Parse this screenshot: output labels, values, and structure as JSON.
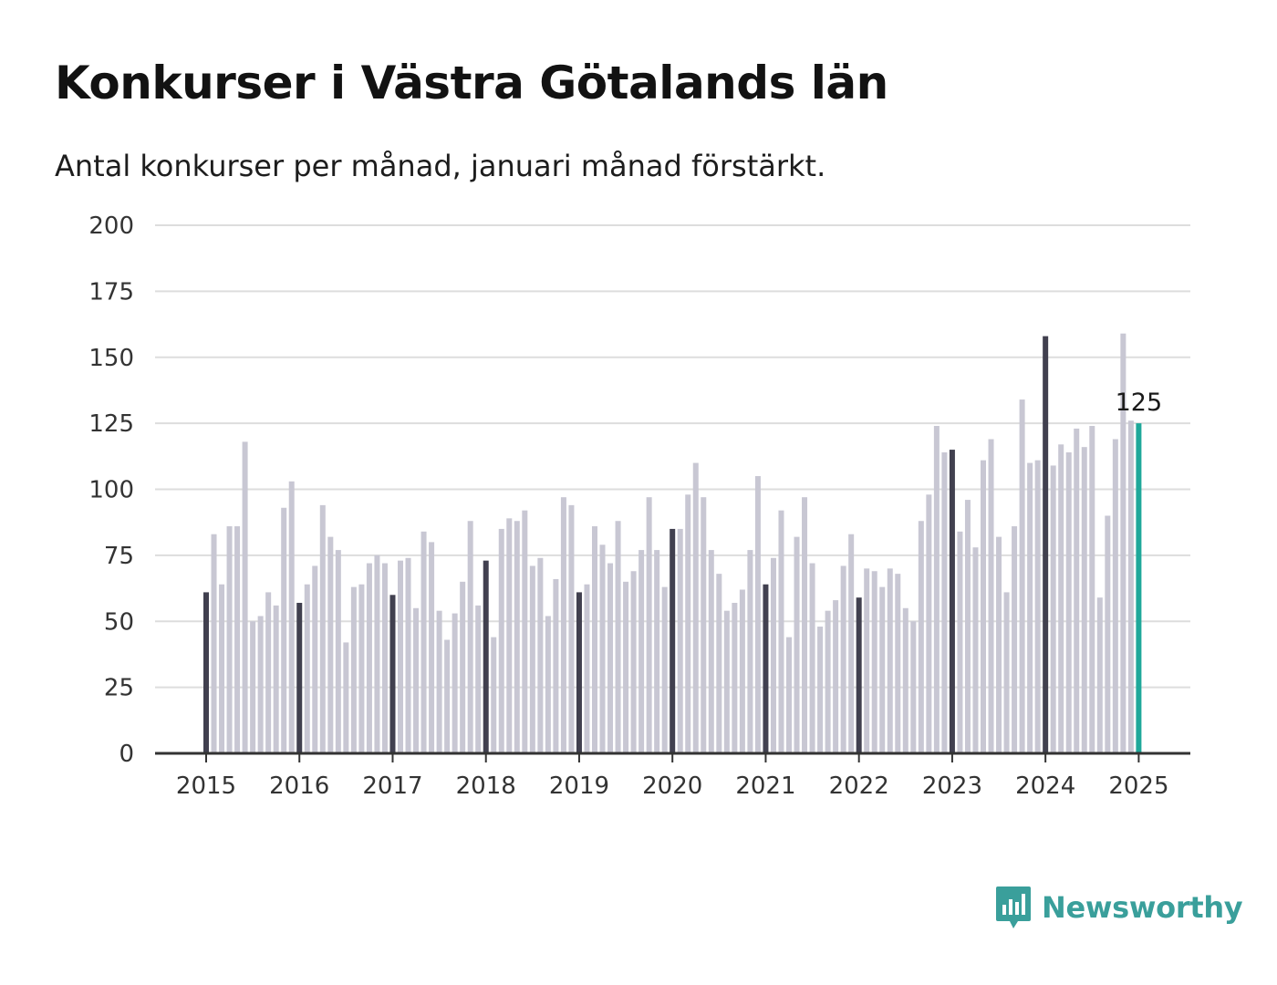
{
  "header": {
    "title": "Konkurser i Västra Götalands län",
    "subtitle": "Antal konkurser per månad, januari månad förstärkt."
  },
  "logo": {
    "text": "Newsworthy",
    "icon": "newsworthy-chart-icon"
  },
  "colors": {
    "bar": "#c8c7d3",
    "january": "#41404f",
    "latest": "#1fa89a",
    "grid": "#dddddd",
    "axis": "#333333",
    "brand": "#3a9f9b"
  },
  "chart_data": {
    "type": "bar",
    "title": "Konkurser i Västra Götalands län",
    "subtitle": "Antal konkurser per månad, januari månad förstärkt.",
    "xlabel": "",
    "ylabel": "",
    "ylim": [
      0,
      200
    ],
    "yticks": [
      0,
      25,
      50,
      75,
      100,
      125,
      150,
      175,
      200
    ],
    "xticks": [
      "2015",
      "2016",
      "2017",
      "2018",
      "2019",
      "2020",
      "2021",
      "2022",
      "2023",
      "2024",
      "2025"
    ],
    "grid": true,
    "legend": "none",
    "highlight": "January bars dark; latest month (January 2025) teal",
    "annotation": {
      "period": "2025-01",
      "text": "125"
    },
    "series": [
      {
        "year": "2015",
        "values": [
          61,
          83,
          64,
          86,
          86,
          118,
          50,
          52,
          61,
          56,
          93,
          103
        ]
      },
      {
        "year": "2016",
        "values": [
          57,
          64,
          71,
          94,
          82,
          77,
          42,
          63,
          64,
          72,
          75,
          72
        ]
      },
      {
        "year": "2017",
        "values": [
          60,
          73,
          74,
          55,
          84,
          80,
          54,
          43,
          53,
          65,
          88,
          56
        ]
      },
      {
        "year": "2018",
        "values": [
          73,
          44,
          85,
          89,
          88,
          92,
          71,
          74,
          52,
          66,
          97,
          94
        ]
      },
      {
        "year": "2019",
        "values": [
          61,
          64,
          86,
          79,
          72,
          88,
          65,
          69,
          77,
          97,
          77,
          63
        ]
      },
      {
        "year": "2020",
        "values": [
          85,
          85,
          98,
          110,
          97,
          77,
          68,
          54,
          57,
          62,
          77,
          105
        ]
      },
      {
        "year": "2021",
        "values": [
          64,
          74,
          92,
          44,
          82,
          97,
          72,
          48,
          54,
          58,
          71,
          83
        ]
      },
      {
        "year": "2022",
        "values": [
          59,
          70,
          69,
          63,
          70,
          68,
          55,
          50,
          88,
          98,
          124,
          114
        ]
      },
      {
        "year": "2023",
        "values": [
          115,
          84,
          96,
          78,
          111,
          119,
          82,
          61,
          86,
          134,
          110,
          111
        ]
      },
      {
        "year": "2024",
        "values": [
          158,
          109,
          117,
          114,
          123,
          116,
          124,
          59,
          90,
          119,
          159,
          126
        ]
      },
      {
        "year": "2025",
        "values": [
          125
        ]
      }
    ]
  }
}
